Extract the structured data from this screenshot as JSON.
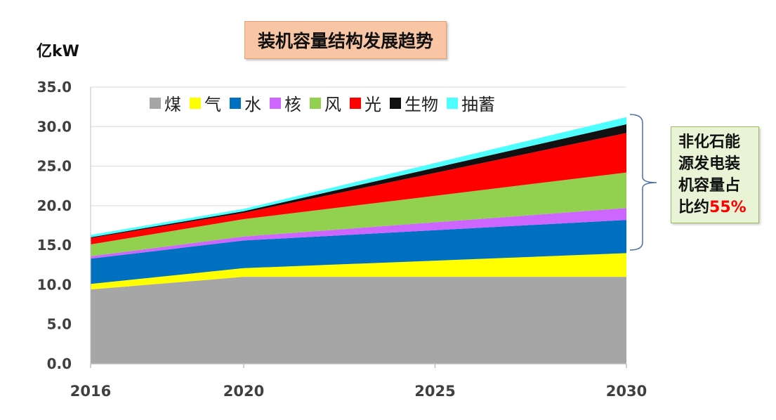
{
  "title": "装机容量结构发展趋势",
  "unit_label": "亿kW",
  "note": {
    "line1": "非化石能",
    "line2": "源发电装",
    "line3": "机容量占",
    "line4_prefix": "比约",
    "line4_value": "55%"
  },
  "colors": {
    "煤": "#a6a6a6",
    "气": "#ffff00",
    "水": "#0070c0",
    "核": "#cc66ff",
    "风": "#92d050",
    "光": "#ff0000",
    "生物": "#111111",
    "抽蓄": "#4dffff"
  },
  "chart_data": {
    "type": "area",
    "stacked": true,
    "title": "装机容量结构发展趋势",
    "ylabel": "亿kW",
    "xlabel": "",
    "x": [
      2016,
      2020,
      2030
    ],
    "x_ticks": [
      "2016",
      "2020",
      "2025",
      "2030"
    ],
    "ylim": [
      0,
      35
    ],
    "y_ticks": [
      "0.0",
      "5.0",
      "10.0",
      "15.0",
      "20.0",
      "25.0",
      "30.0",
      "35.0"
    ],
    "grid": true,
    "legend_position": "top",
    "series": [
      {
        "name": "煤",
        "values": [
          9.4,
          11.0,
          11.0
        ]
      },
      {
        "name": "气",
        "values": [
          0.7,
          1.1,
          3.0
        ]
      },
      {
        "name": "水",
        "values": [
          3.2,
          3.5,
          4.2
        ]
      },
      {
        "name": "核",
        "values": [
          0.3,
          0.5,
          1.5
        ]
      },
      {
        "name": "风",
        "values": [
          1.5,
          2.2,
          4.5
        ]
      },
      {
        "name": "光",
        "values": [
          0.8,
          0.8,
          5.0
        ]
      },
      {
        "name": "生物",
        "values": [
          0.1,
          0.2,
          1.1
        ]
      },
      {
        "name": "抽蓄",
        "values": [
          0.3,
          0.3,
          0.9
        ]
      }
    ]
  }
}
